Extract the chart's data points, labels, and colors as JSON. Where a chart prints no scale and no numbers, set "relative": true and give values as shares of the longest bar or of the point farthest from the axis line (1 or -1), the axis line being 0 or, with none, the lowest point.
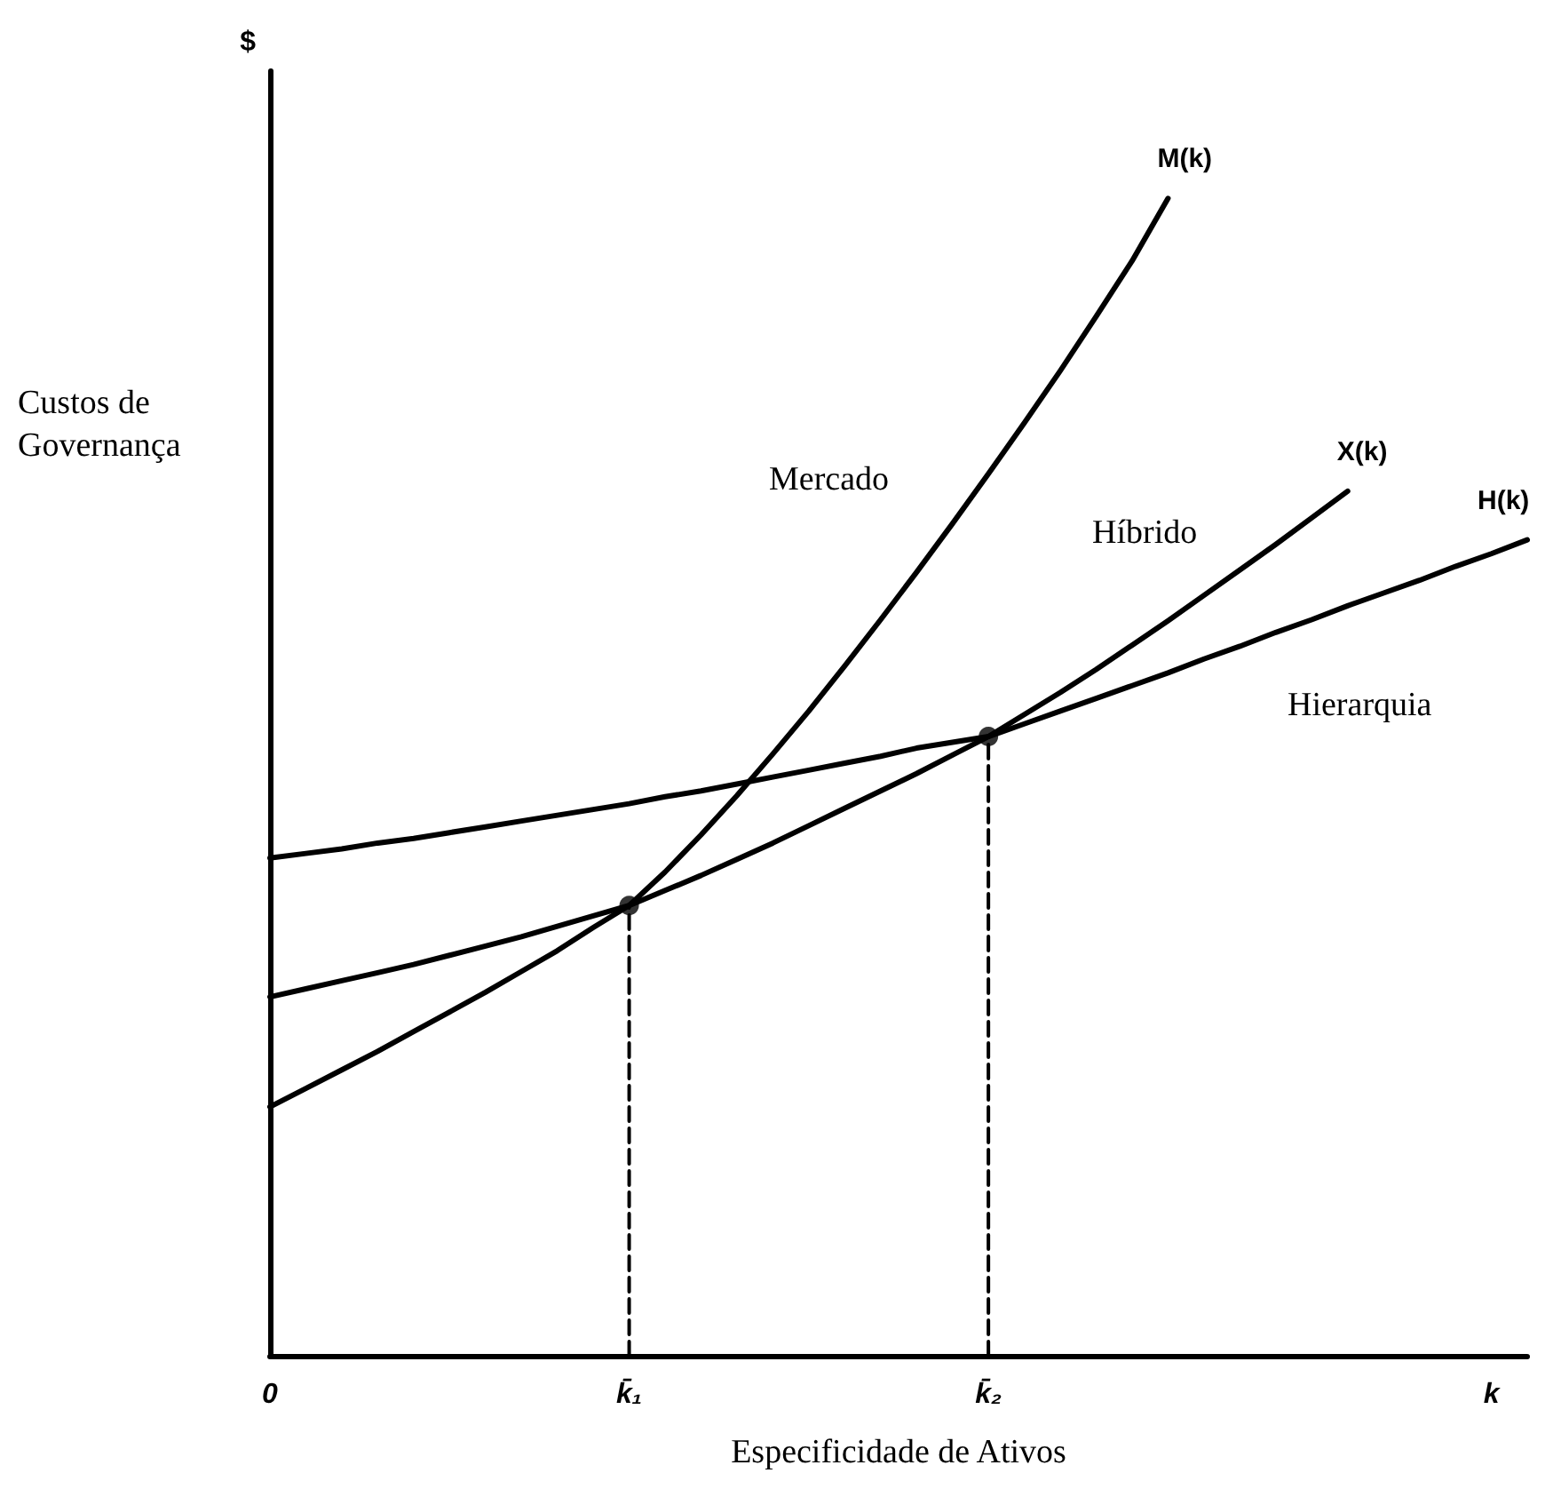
{
  "chart_data": {
    "type": "line",
    "relative": true,
    "ylabel": "$",
    "xlabel": "Especificidade de Ativos",
    "annotations": [
      "Custos de Governança",
      "Mercado",
      "Híbrido",
      "Hierarquia"
    ],
    "categories": [
      "0",
      null,
      null,
      null,
      null,
      null,
      null,
      null,
      null,
      null,
      "k̄₁",
      null,
      null,
      null,
      null,
      null,
      null,
      null,
      null,
      null,
      "k̄₂",
      null,
      null,
      null,
      null,
      null,
      null,
      null,
      null,
      null,
      null,
      null,
      null,
      null,
      "k",
      null
    ],
    "grid": false,
    "legend": false,
    "marker": "none",
    "line_style": "solid",
    "series": [
      {
        "name": "M(k)",
        "color": "#000000",
        "values": [
          0.215,
          0.231,
          0.247,
          0.263,
          0.28,
          0.297,
          0.314,
          0.332,
          0.35,
          0.37,
          0.389,
          0.418,
          0.45,
          0.484,
          0.52,
          0.557,
          0.596,
          0.636,
          0.677,
          0.719,
          0.762,
          0.806,
          0.851,
          0.898,
          0.946,
          1,
          null,
          null,
          null,
          null,
          null,
          null,
          null,
          null,
          null,
          null
        ]
      },
      {
        "name": "X(k)",
        "color": "#000000",
        "values": [
          0.31,
          0.317,
          0.324,
          0.331,
          0.338,
          0.346,
          0.354,
          0.362,
          0.371,
          0.38,
          0.389,
          0.402,
          0.415,
          0.429,
          0.443,
          0.458,
          0.473,
          0.488,
          0.503,
          0.519,
          0.535,
          0.554,
          0.573,
          0.593,
          0.614,
          0.635,
          0.657,
          0.679,
          0.701,
          0.724,
          0.747,
          null,
          null,
          null,
          null,
          null
        ]
      },
      {
        "name": "H(k)",
        "color": "#000000",
        "values": [
          0.43,
          0.434,
          0.438,
          0.443,
          0.447,
          0.452,
          0.457,
          0.462,
          0.467,
          0.472,
          0.477,
          0.483,
          0.488,
          0.494,
          0.5,
          0.506,
          0.512,
          0.518,
          0.525,
          0.53,
          0.535,
          0.546,
          0.557,
          0.568,
          0.579,
          0.59,
          0.602,
          0.613,
          0.625,
          0.636,
          0.648,
          0.659,
          0.67,
          0.682,
          0.693,
          0.705
        ]
      },
      {
        "color": "#000000",
        "line_style": "dashed",
        "x": [
          "k̄₁",
          "k̄₁"
        ],
        "values": [
          0,
          0.389
        ]
      },
      {
        "color": "#000000",
        "line_style": "dashed",
        "x": [
          "k̄₂",
          "k̄₂"
        ],
        "values": [
          0,
          0.535
        ]
      },
      {
        "type": "scatter",
        "color": "#000000",
        "marker": "circle",
        "values": [
          null,
          null,
          null,
          null,
          null,
          null,
          null,
          null,
          null,
          null,
          0.389,
          null,
          null,
          null,
          null,
          null,
          null,
          null,
          null,
          null,
          0.535,
          null,
          null,
          null,
          null,
          null,
          null,
          null,
          null,
          null,
          null,
          null,
          null,
          null,
          null,
          null
        ]
      }
    ]
  }
}
